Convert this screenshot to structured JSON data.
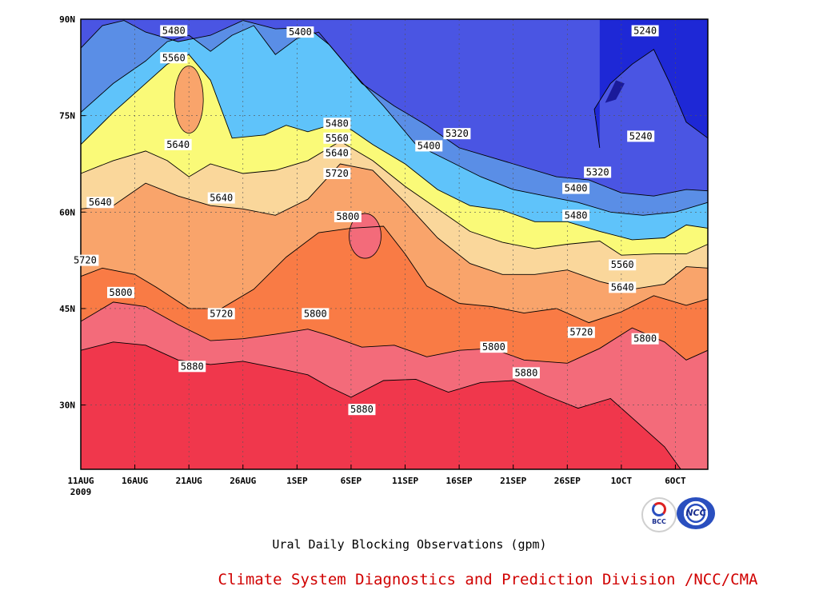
{
  "chart_data": {
    "type": "heatmap",
    "subtype": "filled-contour",
    "title": "",
    "xlabel": "",
    "ylabel": "",
    "variable_unit": "gpm",
    "x_ticks": [
      "11AUG",
      "16AUG",
      "21AUG",
      "26AUG",
      "1SEP",
      "6SEP",
      "11SEP",
      "16SEP",
      "21SEP",
      "26SEP",
      "1OCT",
      "6OCT"
    ],
    "x_year_label": "2009",
    "x_range_days": [
      0,
      58
    ],
    "y_ticks": [
      "30N",
      "45N",
      "60N",
      "75N",
      "90N"
    ],
    "y_range_lat": [
      20,
      90
    ],
    "contour_levels": [
      5160,
      5240,
      5320,
      5400,
      5480,
      5560,
      5640,
      5720,
      5800,
      5880
    ],
    "level_colors": [
      "#1a1a9a",
      "#1e28d6",
      "#4a55e3",
      "#5a8ee6",
      "#5fc3fa",
      "#fafa78",
      "#fad79b",
      "#f9a46b",
      "#f97b45",
      "#f36b7a",
      "#f0374c"
    ],
    "contour_labels": [
      {
        "text": "5480",
        "day": 8.6,
        "lat": 88.2
      },
      {
        "text": "5560",
        "day": 8.6,
        "lat": 84.0
      },
      {
        "text": "5640",
        "day": 9.0,
        "lat": 70.5
      },
      {
        "text": "5640",
        "day": 1.8,
        "lat": 61.5
      },
      {
        "text": "5640",
        "day": 13.0,
        "lat": 62.2
      },
      {
        "text": "5720",
        "day": 0.4,
        "lat": 52.5
      },
      {
        "text": "5800",
        "day": 3.7,
        "lat": 47.5
      },
      {
        "text": "5720",
        "day": 13.0,
        "lat": 44.2
      },
      {
        "text": "5880",
        "day": 10.3,
        "lat": 36.0
      },
      {
        "text": "5400",
        "day": 20.3,
        "lat": 88.0
      },
      {
        "text": "5480",
        "day": 23.7,
        "lat": 73.8
      },
      {
        "text": "5560",
        "day": 23.7,
        "lat": 71.5
      },
      {
        "text": "5640",
        "day": 23.7,
        "lat": 69.2
      },
      {
        "text": "5720",
        "day": 23.7,
        "lat": 66.0
      },
      {
        "text": "5800",
        "day": 24.7,
        "lat": 59.3
      },
      {
        "text": "5800",
        "day": 21.7,
        "lat": 44.2
      },
      {
        "text": "5880",
        "day": 26.0,
        "lat": 29.3
      },
      {
        "text": "5320",
        "day": 34.8,
        "lat": 72.2
      },
      {
        "text": "5400",
        "day": 32.2,
        "lat": 70.3
      },
      {
        "text": "5800",
        "day": 38.2,
        "lat": 39.0
      },
      {
        "text": "5880",
        "day": 41.2,
        "lat": 35.0
      },
      {
        "text": "5240",
        "day": 52.2,
        "lat": 88.2
      },
      {
        "text": "5240",
        "day": 51.8,
        "lat": 71.8
      },
      {
        "text": "5320",
        "day": 47.8,
        "lat": 66.2
      },
      {
        "text": "5400",
        "day": 45.8,
        "lat": 63.7
      },
      {
        "text": "5480",
        "day": 45.8,
        "lat": 59.5
      },
      {
        "text": "5560",
        "day": 50.1,
        "lat": 51.8
      },
      {
        "text": "5640",
        "day": 50.1,
        "lat": 48.3
      },
      {
        "text": "5720",
        "day": 46.3,
        "lat": 41.3
      },
      {
        "text": "5800",
        "day": 52.2,
        "lat": 40.3
      }
    ],
    "contour_lines": [
      {
        "level": 5880,
        "points": [
          [
            0,
            38.5
          ],
          [
            3,
            39.8
          ],
          [
            6,
            39.3
          ],
          [
            9,
            37.0
          ],
          [
            12,
            36.3
          ],
          [
            15,
            36.8
          ],
          [
            18,
            35.8
          ],
          [
            21,
            34.7
          ],
          [
            23,
            32.8
          ],
          [
            25,
            31.2
          ],
          [
            28,
            33.8
          ],
          [
            31,
            34.0
          ],
          [
            34,
            32.0
          ],
          [
            37,
            33.5
          ],
          [
            40,
            33.8
          ],
          [
            43,
            31.5
          ],
          [
            46,
            29.5
          ],
          [
            49,
            31.0
          ],
          [
            52,
            26.5
          ],
          [
            54,
            23.5
          ],
          [
            55.5,
            20.0
          ]
        ]
      },
      {
        "level": 5800,
        "points": [
          [
            0,
            43.0
          ],
          [
            3,
            46.0
          ],
          [
            6,
            45.3
          ],
          [
            9,
            42.5
          ],
          [
            12,
            40.0
          ],
          [
            15,
            40.3
          ],
          [
            18,
            41.0
          ],
          [
            21,
            41.8
          ],
          [
            23,
            40.8
          ],
          [
            26,
            39.0
          ],
          [
            29,
            39.3
          ],
          [
            32,
            37.5
          ],
          [
            35,
            38.5
          ],
          [
            38,
            38.8
          ],
          [
            41,
            37.0
          ],
          [
            45,
            36.5
          ],
          [
            48,
            38.8
          ],
          [
            51,
            42.0
          ],
          [
            54,
            39.8
          ],
          [
            56,
            37.0
          ],
          [
            58,
            38.5
          ]
        ]
      },
      {
        "level": 5720,
        "points": [
          [
            0,
            50.0
          ],
          [
            2,
            51.3
          ],
          [
            5,
            50.3
          ],
          [
            7,
            48.3
          ],
          [
            10,
            45.0
          ],
          [
            13,
            45.0
          ],
          [
            16,
            48.0
          ],
          [
            19,
            53.0
          ],
          [
            22,
            56.8
          ],
          [
            25,
            57.5
          ],
          [
            28,
            57.8
          ],
          [
            30,
            53.5
          ],
          [
            32,
            48.5
          ],
          [
            35,
            45.8
          ],
          [
            38,
            45.3
          ],
          [
            41,
            44.3
          ],
          [
            44,
            45.0
          ],
          [
            47,
            42.8
          ],
          [
            50,
            44.5
          ],
          [
            53,
            47.0
          ],
          [
            56,
            45.5
          ],
          [
            58,
            46.5
          ]
        ]
      },
      {
        "level": 5640,
        "points": [
          [
            0,
            60.5
          ],
          [
            3,
            61.0
          ],
          [
            6,
            64.5
          ],
          [
            9,
            62.5
          ],
          [
            12,
            61.0
          ],
          [
            15,
            60.5
          ],
          [
            18,
            59.5
          ],
          [
            21,
            62.0
          ],
          [
            24,
            67.5
          ],
          [
            27,
            66.5
          ],
          [
            30,
            61.5
          ],
          [
            33,
            56.0
          ],
          [
            36,
            52.0
          ],
          [
            39,
            50.3
          ],
          [
            42,
            50.3
          ],
          [
            45,
            51.0
          ],
          [
            48,
            49.2
          ],
          [
            51,
            48.0
          ],
          [
            54,
            48.8
          ],
          [
            56,
            51.5
          ],
          [
            58,
            51.3
          ]
        ]
      },
      {
        "level": 5560,
        "points": [
          [
            0,
            66.0
          ],
          [
            3,
            68.0
          ],
          [
            6,
            69.5
          ],
          [
            8,
            68.0
          ],
          [
            10,
            65.5
          ],
          [
            12,
            67.5
          ],
          [
            15,
            66.0
          ],
          [
            18,
            66.5
          ],
          [
            21,
            68.0
          ],
          [
            24,
            71.0
          ],
          [
            27,
            68.0
          ],
          [
            30,
            64.0
          ],
          [
            33,
            60.5
          ],
          [
            36,
            57.0
          ],
          [
            39,
            55.3
          ],
          [
            42,
            54.3
          ],
          [
            45,
            55.0
          ],
          [
            48,
            55.5
          ],
          [
            50,
            53.3
          ],
          [
            53,
            53.5
          ],
          [
            56,
            53.5
          ],
          [
            58,
            55.0
          ]
        ]
      },
      {
        "level": 5480,
        "points": [
          [
            0,
            70.5
          ],
          [
            3,
            75.5
          ],
          [
            6,
            80.0
          ],
          [
            8,
            83.0
          ],
          [
            10,
            84.5
          ],
          [
            12,
            80.5
          ],
          [
            14,
            71.5
          ],
          [
            17,
            72.0
          ],
          [
            19,
            73.5
          ],
          [
            21,
            72.5
          ],
          [
            24,
            74.0
          ],
          [
            27,
            70.5
          ],
          [
            30,
            67.5
          ],
          [
            33,
            63.5
          ],
          [
            36,
            61.0
          ],
          [
            39,
            60.3
          ],
          [
            42,
            58.5
          ],
          [
            45,
            58.5
          ],
          [
            48,
            57.0
          ],
          [
            51,
            55.7
          ],
          [
            54,
            56.0
          ],
          [
            56,
            58.0
          ],
          [
            58,
            57.5
          ]
        ]
      },
      {
        "level": 5400,
        "points": [
          [
            0,
            75.5
          ],
          [
            3,
            80.0
          ],
          [
            6,
            83.5
          ],
          [
            8,
            86.5
          ],
          [
            10,
            87.5
          ],
          [
            12,
            85.0
          ],
          [
            14,
            87.5
          ],
          [
            16,
            89.0
          ],
          [
            18,
            84.5
          ],
          [
            20,
            87.0
          ],
          [
            22,
            88.0
          ],
          [
            25,
            82.0
          ],
          [
            28,
            76.5
          ],
          [
            31,
            70.5
          ],
          [
            34,
            68.0
          ],
          [
            37,
            65.5
          ],
          [
            40,
            63.5
          ],
          [
            43,
            62.5
          ],
          [
            46,
            61.5
          ],
          [
            49,
            60.0
          ],
          [
            52,
            59.5
          ],
          [
            55,
            60.0
          ],
          [
            58,
            61.5
          ]
        ]
      },
      {
        "level": 5320,
        "points": [
          [
            0,
            85.5
          ],
          [
            2,
            89.0
          ],
          [
            4,
            89.8
          ],
          [
            6,
            88.0
          ],
          [
            9,
            86.5
          ],
          [
            12,
            87.5
          ],
          [
            15,
            89.8
          ],
          [
            18,
            88.5
          ],
          [
            21,
            88.7
          ],
          [
            23,
            86.0
          ],
          [
            26,
            80.0
          ],
          [
            29,
            76.5
          ],
          [
            32,
            73.5
          ],
          [
            35,
            70.0
          ],
          [
            38,
            68.5
          ],
          [
            41,
            67.0
          ],
          [
            44,
            65.5
          ],
          [
            47,
            65.0
          ],
          [
            50,
            63.0
          ],
          [
            53,
            62.5
          ],
          [
            56,
            63.5
          ],
          [
            58,
            63.3
          ]
        ]
      },
      {
        "level": 5240,
        "points": [
          [
            48,
            70.0
          ],
          [
            47.5,
            76.0
          ],
          [
            49,
            80.0
          ],
          [
            51,
            83.0
          ],
          [
            53,
            85.3
          ],
          [
            54.5,
            80.0
          ],
          [
            56,
            74.0
          ],
          [
            58,
            71.5
          ]
        ]
      }
    ]
  },
  "text": {
    "caption": "Ural Daily Blocking Observations (gpm)",
    "credit": "Climate System Diagnostics and Prediction Division /NCC/CMA",
    "logo_bcc": "BCC",
    "logo_ncc": "NCC"
  }
}
